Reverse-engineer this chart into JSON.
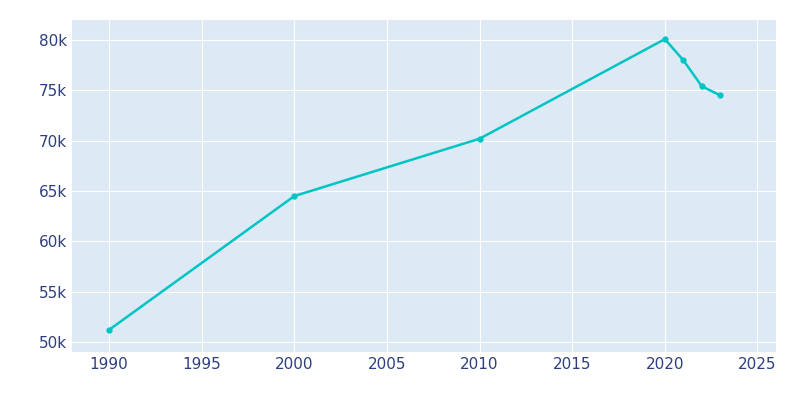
{
  "years": [
    1990,
    2000,
    2010,
    2020,
    2021,
    2022,
    2023
  ],
  "population": [
    51200,
    64500,
    70200,
    80100,
    78000,
    75400,
    74500
  ],
  "line_color": "#00C4C4",
  "marker": "o",
  "marker_size": 3.5,
  "line_width": 1.8,
  "plot_bg_color": "#DDEAF5",
  "fig_bg_color": "#FFFFFF",
  "xlim": [
    1988,
    2026
  ],
  "ylim": [
    49000,
    82000
  ],
  "xticks": [
    1990,
    1995,
    2000,
    2005,
    2010,
    2015,
    2020,
    2025
  ],
  "yticks": [
    50000,
    55000,
    60000,
    65000,
    70000,
    75000,
    80000
  ],
  "grid_color": "#FFFFFF",
  "tick_color": "#2E3F7F",
  "label_fontsize": 11
}
